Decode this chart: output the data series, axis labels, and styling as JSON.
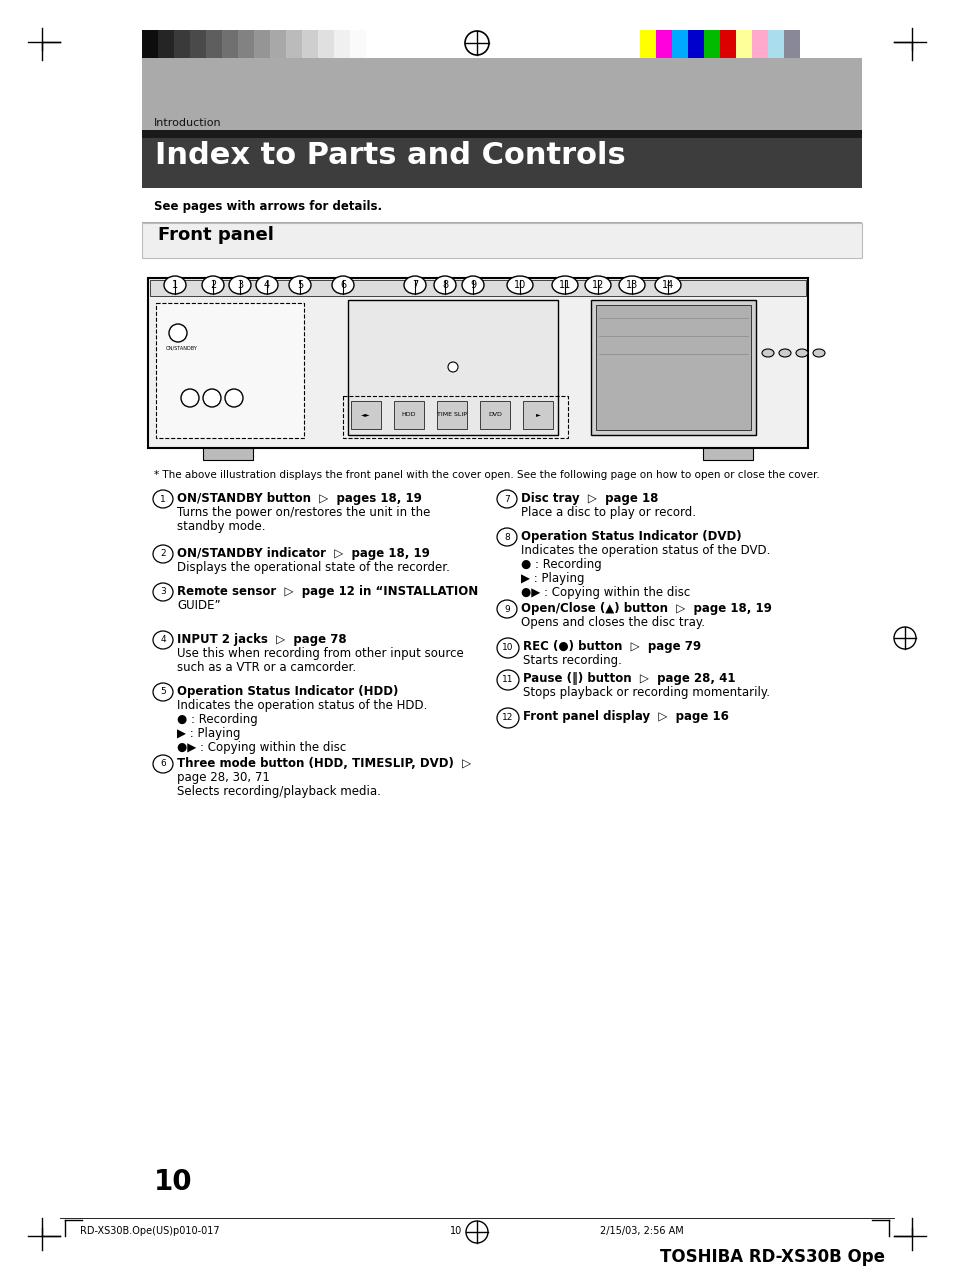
{
  "title": "Index to Parts and Controls",
  "section": "Front panel",
  "header_label": "Introduction",
  "bg_color": "#ffffff",
  "subtitle": "See pages with arrows for details.",
  "note": "* The above illustration displays the front panel with the cover open. See the following page on how to open or close the cover.",
  "left_items": [
    {
      "num": "1",
      "bold": "ON/STANDBY button",
      "arrow": true,
      "page_ref": "pages 18, 19",
      "desc_lines": [
        "Turns the power on/restores the unit in the",
        "standby mode."
      ]
    },
    {
      "num": "2",
      "bold": "ON/STANDBY indicator",
      "arrow": true,
      "page_ref": "page 18, 19",
      "desc_lines": [
        "Displays the operational state of the recorder."
      ]
    },
    {
      "num": "3",
      "bold": "Remote sensor",
      "arrow": true,
      "page_ref": "page 12 in “INSTALLATION",
      "desc_lines": [
        "GUIDE”"
      ]
    },
    {
      "num": "4",
      "bold": "INPUT 2 jacks",
      "arrow": true,
      "page_ref": "page 78",
      "desc_lines": [
        "Use this when recording from other input source",
        "such as a VTR or a camcorder."
      ]
    },
    {
      "num": "5",
      "bold": "Operation Status Indicator (HDD)",
      "arrow": false,
      "page_ref": "",
      "desc_lines": [
        "Indicates the operation status of the HDD.",
        "● : Recording",
        "▶ : Playing",
        "●▶ : Copying within the disc"
      ]
    },
    {
      "num": "6",
      "bold": "Three mode button (HDD, TIMESLIP, DVD)",
      "arrow": true,
      "page_ref": "",
      "desc_lines": [
        "page 28, 30, 71",
        "Selects recording/playback media."
      ]
    }
  ],
  "right_items": [
    {
      "num": "7",
      "bold": "Disc tray",
      "arrow": true,
      "page_ref": "page 18",
      "desc_lines": [
        "Place a disc to play or record."
      ]
    },
    {
      "num": "8",
      "bold": "Operation Status Indicator (DVD)",
      "arrow": false,
      "page_ref": "",
      "desc_lines": [
        "Indicates the operation status of the DVD.",
        "● : Recording",
        "▶ : Playing",
        "●▶ : Copying within the disc"
      ]
    },
    {
      "num": "9",
      "bold": "Open/Close (▲) button",
      "arrow": true,
      "page_ref": "page 18, 19",
      "desc_lines": [
        "Opens and closes the disc tray."
      ]
    },
    {
      "num": "10",
      "bold": "REC (●) button",
      "arrow": true,
      "page_ref": "page 79",
      "desc_lines": [
        "Starts recording."
      ]
    },
    {
      "num": "11",
      "bold": "Pause (‖) button",
      "arrow": true,
      "page_ref": "page 28, 41",
      "desc_lines": [
        "Stops playback or recording momentarily."
      ]
    },
    {
      "num": "12",
      "bold": "Front panel display",
      "arrow": true,
      "page_ref": "page 16",
      "desc_lines": []
    }
  ],
  "page_number": "10",
  "footer_left": "RD-XS30B.Ope(US)p010-017",
  "footer_center_page": "10",
  "footer_date": "2/15/03, 2:56 AM",
  "footer_brand": "TOSHIBA RD-XS30B Ope",
  "colors_left_bars": [
    "#0d0d0d",
    "#252525",
    "#3a3a3a",
    "#4a4a4a",
    "#5e5e5e",
    "#707070",
    "#828282",
    "#959595",
    "#a8a8a8",
    "#bbbbbb",
    "#cecece",
    "#e0e0e0",
    "#f0f0f0",
    "#fafafa"
  ],
  "colors_right_bars": [
    "#ffff00",
    "#ff00dd",
    "#00aaff",
    "#0000cc",
    "#00bb00",
    "#dd0000",
    "#ffff99",
    "#ffaacc",
    "#aaddee",
    "#888899"
  ]
}
